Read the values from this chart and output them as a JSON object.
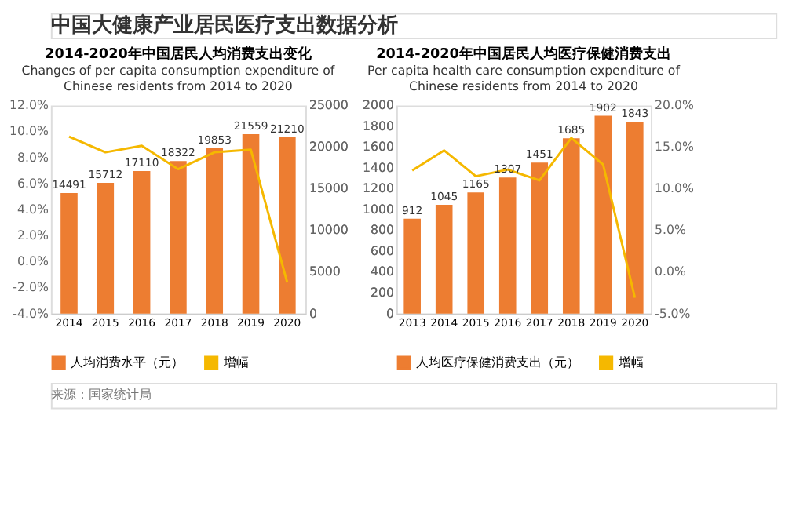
{
  "chart_data": [
    {
      "type": "bar",
      "title": "2014-2020年中国居民人均消费支出变化",
      "subtitle": "Changes of per capita consumption expenditure of Chinese residents from 2014 to 2020",
      "annotations": [
        "中国大健康产业居民医疗支出数据分析",
        "来源：国家统计局"
      ],
      "categories": [
        "2014",
        "2015",
        "2016",
        "2017",
        "2018",
        "2019",
        "2020"
      ],
      "series": [
        {
          "name": "人均消费水平（元）",
          "axis": "y2",
          "color": "#ed7d31",
          "values": [
            14491,
            15712,
            17110,
            18322,
            19853,
            21559,
            21210
          ],
          "value_labels": [
            "14491",
            "15712",
            "17110",
            "18322",
            "19853",
            "21559",
            "21210"
          ]
        },
        {
          "name": "增幅",
          "type": "line",
          "color": "#f5b800",
          "values": [
            9.6,
            8.4,
            8.9,
            7.1,
            8.4,
            8.6,
            -1.6
          ]
        }
      ],
      "ylim": [
        -4,
        12
      ],
      "yticks": [
        {
          "value": -4,
          "label": "-4.0%"
        },
        {
          "value": -2,
          "label": "-2.0%"
        },
        {
          "value": 0,
          "label": "0.0%"
        },
        {
          "value": 2,
          "label": "2.0%"
        },
        {
          "value": 4,
          "label": "4.0%"
        },
        {
          "value": 6,
          "label": "6.0%"
        },
        {
          "value": 8,
          "label": "8.0%"
        },
        {
          "value": 10,
          "label": "10.0%"
        },
        {
          "value": 12,
          "label": "12.0%"
        }
      ],
      "y2lim": [
        0,
        25000
      ],
      "y2ticks": [
        0,
        5000,
        10000,
        15000,
        20000,
        25000
      ],
      "legend": "bottom",
      "grid": false
    },
    {
      "type": "bar",
      "title": "2014-2020年中国居民人均医疗保健消费支出",
      "subtitle": "Per capita health care consumption expenditure of Chinese residents from 2014 to 2020",
      "categories": [
        "2013",
        "2014",
        "2015",
        "2016",
        "2017",
        "2018",
        "2019",
        "2020"
      ],
      "series": [
        {
          "name": "人均医疗保健消费支出（元）",
          "color": "#ed7d31",
          "values": [
            912,
            1045,
            1165,
            1307,
            1451,
            1685,
            1902,
            1843
          ],
          "value_labels": [
            "912",
            "1045",
            "1165",
            "1307",
            "1451",
            "1685",
            "1902",
            "1843"
          ]
        },
        {
          "name": "增幅",
          "type": "line",
          "axis": "y2",
          "color": "#f5b800",
          "values": [
            12.2,
            14.6,
            11.5,
            12.3,
            11.0,
            16.1,
            12.9,
            -3.1
          ]
        }
      ],
      "ylim": [
        0,
        2000
      ],
      "yticks": [
        0,
        200,
        400,
        600,
        800,
        1000,
        1200,
        1400,
        1600,
        1800,
        2000
      ],
      "y2lim": [
        -5,
        20
      ],
      "y2ticks": [
        {
          "value": -5,
          "label": "-5.0%"
        },
        {
          "value": 0,
          "label": "0.0%"
        },
        {
          "value": 5,
          "label": "5.0%"
        },
        {
          "value": 10,
          "label": "10.0%"
        },
        {
          "value": 15,
          "label": "15.0%"
        },
        {
          "value": 20,
          "label": "20.0%"
        }
      ],
      "legend": "bottom",
      "grid": false
    }
  ]
}
